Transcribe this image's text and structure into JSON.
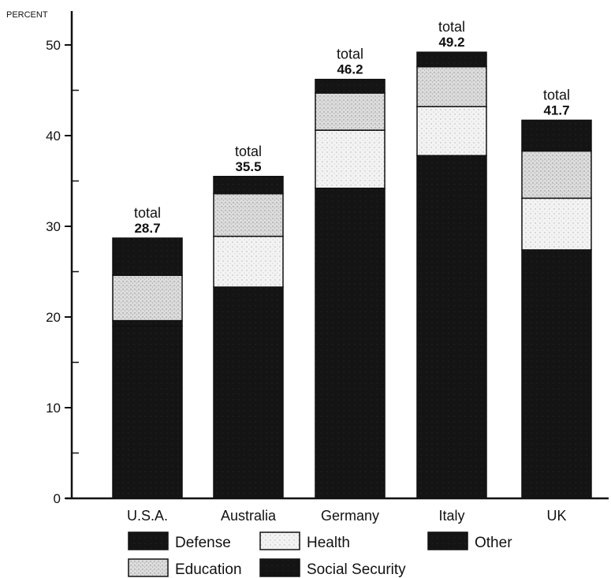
{
  "chart_data": {
    "type": "bar",
    "stacked": true,
    "ylabel": "PERCENT",
    "ylim": [
      0,
      53
    ],
    "yticks": [
      0,
      10,
      20,
      30,
      40,
      50
    ],
    "categories": [
      "U.S.A.",
      "Australia",
      "Germany",
      "Italy",
      "UK"
    ],
    "totals_prefix": "total",
    "totals": [
      "28.7",
      "35.5",
      "46.2",
      "49.2",
      "41.7"
    ],
    "series": [
      {
        "name": "Social Security",
        "values": [
          19.0,
          23.3,
          34.2,
          37.8,
          27.4
        ]
      },
      {
        "name": "Defense",
        "values": [
          0.6,
          0.0,
          0.0,
          0.0,
          0.0
        ]
      },
      {
        "name": "Health",
        "values": [
          0.0,
          5.6,
          6.4,
          5.4,
          5.7
        ]
      },
      {
        "name": "Education",
        "values": [
          5.0,
          4.7,
          4.1,
          4.4,
          5.2
        ]
      },
      {
        "name": "Other",
        "values": [
          4.1,
          1.9,
          1.5,
          1.6,
          3.4
        ]
      }
    ],
    "legend": [
      {
        "name": "Defense",
        "key": "Defense"
      },
      {
        "name": "Health",
        "key": "Health"
      },
      {
        "name": "Other",
        "key": "Other"
      },
      {
        "name": "Education",
        "key": "Education"
      },
      {
        "name": "Social Security",
        "key": "Social Security"
      }
    ],
    "styles": {
      "Social Security": {
        "fill": "#151515",
        "stroke": "#000000"
      },
      "Defense": {
        "fill": "#151515",
        "stroke": "#000000"
      },
      "Other": {
        "fill": "#151515",
        "stroke": "#000000"
      },
      "Health": {
        "fill": "#f1f1f1",
        "stroke": "#111111"
      },
      "Education": {
        "fill": "#d7d7d7",
        "stroke": "#111111"
      }
    },
    "grid": false,
    "legend_placement": "bottom"
  }
}
